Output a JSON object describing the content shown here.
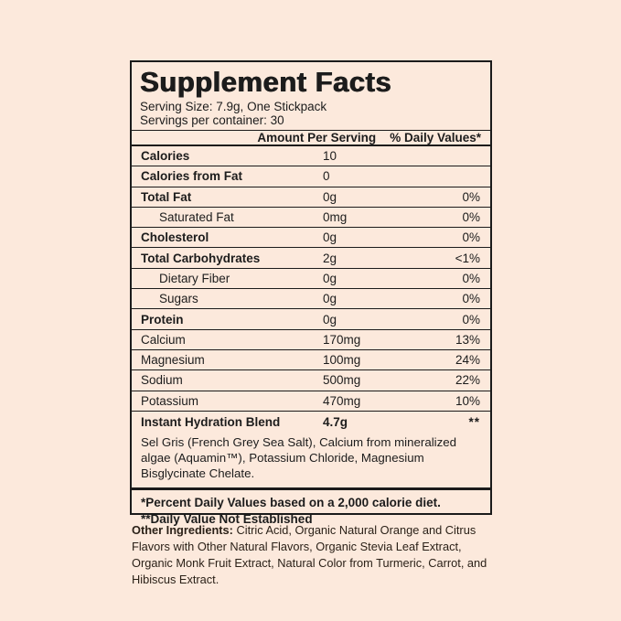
{
  "colors": {
    "background": "#fce9dc",
    "line": "#1b1b1b",
    "text": "#1c1c1c"
  },
  "label": {
    "title": "Supplement Facts",
    "serving_size": "Serving Size: 7.9g, One Stickpack",
    "servings_per_container": "Servings per container: 30",
    "columns": {
      "amount": "Amount Per Serving",
      "daily_value": "% Daily Values*"
    },
    "rows": [
      {
        "label": "Calories",
        "amount": "10",
        "dv": ""
      },
      {
        "label": "Calories from Fat",
        "amount": "0",
        "dv": ""
      },
      {
        "label": "Total Fat",
        "amount": "0g",
        "dv": "0%"
      },
      {
        "label": "Saturated Fat",
        "amount": "0mg",
        "dv": "0%"
      },
      {
        "label": "Cholesterol",
        "amount": "0g",
        "dv": "0%"
      },
      {
        "label": "Total Carbohydrates",
        "amount": "2g",
        "dv": "<1%"
      },
      {
        "label": "Dietary Fiber",
        "amount": "0g",
        "dv": "0%"
      },
      {
        "label": "Sugars",
        "amount": "0g",
        "dv": "0%"
      },
      {
        "label": "Protein",
        "amount": "0g",
        "dv": "0%"
      },
      {
        "label": "Calcium",
        "amount": "170mg",
        "dv": "13%"
      },
      {
        "label": "Magnesium",
        "amount": "100mg",
        "dv": "24%"
      },
      {
        "label": "Sodium",
        "amount": "500mg",
        "dv": "22%"
      },
      {
        "label": "Potassium",
        "amount": "470mg",
        "dv": "10%"
      }
    ],
    "blend": {
      "label": "Instant Hydration Blend",
      "amount": "4.7g",
      "dv": "**",
      "description": "Sel Gris (French Grey Sea Salt), Calcium from mineralized algae (Aquamin™), Potassium Chloride, Magnesium Bisglycinate Chelate."
    },
    "footnotes": [
      "*Percent Daily Values based on a 2,000 calorie diet.",
      "**Daily Value Not Established"
    ]
  },
  "other_ingredients": {
    "label": "Other Ingredients:",
    "text": "Citric Acid, Organic Natural Orange and Citrus Flavors with Other Natural Flavors, Organic Stevia Leaf Extract, Organic Monk Fruit Extract, Natural Color from Turmeric, Carrot, and Hibiscus Extract."
  }
}
